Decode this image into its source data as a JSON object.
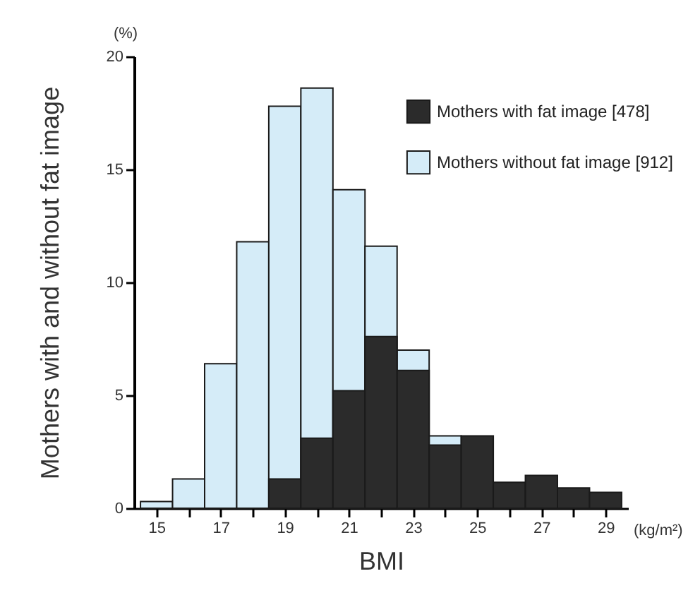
{
  "chart_data": {
    "type": "histogram",
    "xlabel": "BMI",
    "ylabel": "Mothers with and without fat image",
    "annotations": [
      "(%)",
      "(kg/m²)"
    ],
    "bins": [
      14.5,
      15.5,
      16.5,
      17.5,
      18.5,
      19.5,
      20.5,
      21.5,
      22.5,
      23.5,
      24.5,
      25.5,
      26.5,
      27.5,
      28.5,
      29.5
    ],
    "series": [
      {
        "name": "Mothers with fat image [478]",
        "color": "#2b2b2b",
        "values": [
          null,
          null,
          null,
          null,
          1.3,
          3.1,
          5.2,
          7.6,
          6.1,
          2.8,
          3.2,
          1.15,
          1.45,
          0.9,
          0.7
        ]
      },
      {
        "name": "Mothers without fat image [912]",
        "color": "#d5ecf8",
        "values": [
          0.3,
          1.3,
          6.4,
          11.8,
          17.8,
          18.6,
          14.1,
          11.6,
          7.0,
          3.2,
          null,
          null,
          null,
          null,
          null
        ]
      }
    ],
    "xlim": [
      14.3,
      29.7
    ],
    "xticks": [
      15,
      {
        "value": 16,
        "label": null
      },
      17,
      {
        "value": 18,
        "label": null
      },
      19,
      {
        "value": 20,
        "label": null
      },
      21,
      {
        "value": 22,
        "label": null
      },
      23,
      {
        "value": 24,
        "label": null
      },
      25,
      {
        "value": 26,
        "label": null
      },
      27,
      {
        "value": 28,
        "label": null
      },
      29
    ],
    "ylim": [
      0,
      20
    ],
    "yticks": [
      0,
      5,
      10,
      15,
      20
    ],
    "grid": false,
    "legend": "top right"
  }
}
